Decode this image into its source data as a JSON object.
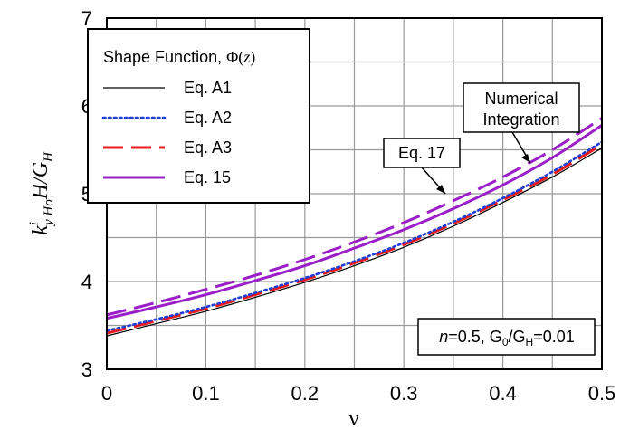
{
  "chart_data": {
    "type": "line",
    "xlabel": "ν",
    "ylabel": {
      "k": "k",
      "sup": "i",
      "sub": "y Ho",
      "rest": "H/G",
      "sub2": "H"
    },
    "xlim": [
      0,
      0.5
    ],
    "ylim": [
      3,
      7
    ],
    "x_ticks": [
      "0",
      "0.1",
      "0.2",
      "0.3",
      "0.4",
      "0.5"
    ],
    "y_ticks": [
      "3",
      "4",
      "5",
      "6",
      "7"
    ],
    "grid": true,
    "legend": {
      "title": "Shape Function, Φ(z)",
      "title_parts": {
        "text": "Shape Function, ",
        "phi": "Φ(",
        "z": "z",
        "close": ")"
      },
      "placement": "top-left"
    },
    "x": [
      0,
      0.05,
      0.1,
      0.15,
      0.2,
      0.25,
      0.3,
      0.35,
      0.4,
      0.45,
      0.5
    ],
    "series": [
      {
        "name": "Eq. A1",
        "color": "#000000",
        "style": "solid",
        "width": 1.2,
        "values": [
          3.38,
          3.52,
          3.66,
          3.82,
          3.99,
          4.18,
          4.39,
          4.63,
          4.9,
          5.19,
          5.52
        ]
      },
      {
        "name": "Eq. A2",
        "color": "#1f3fd6",
        "style": "dotted",
        "width": 2.6,
        "values": [
          3.44,
          3.57,
          3.71,
          3.87,
          4.04,
          4.23,
          4.44,
          4.68,
          4.95,
          5.25,
          5.59
        ]
      },
      {
        "name": "Eq. A3",
        "color": "#e8191a",
        "style": "dashed",
        "width": 3,
        "values": [
          3.41,
          3.55,
          3.69,
          3.85,
          4.02,
          4.21,
          4.42,
          4.66,
          4.93,
          5.22,
          5.56
        ]
      },
      {
        "name": "Eq. 15",
        "color": "#9b1fc8",
        "style": "solid",
        "width": 3,
        "values": [
          3.58,
          3.71,
          3.85,
          4.01,
          4.18,
          4.38,
          4.59,
          4.83,
          5.1,
          5.41,
          5.78
        ]
      },
      {
        "name": "",
        "color": "#9b1fc8",
        "style": "dashed",
        "width": 3,
        "values": [
          3.62,
          3.76,
          3.91,
          4.07,
          4.25,
          4.45,
          4.67,
          4.92,
          5.19,
          5.5,
          5.86
        ]
      }
    ],
    "annotations": [
      {
        "text": "Eq. 17"
      },
      {
        "lines": [
          "Numerical",
          "Integration"
        ]
      },
      {
        "parts": {
          "n": "n",
          "eq1": "=0.5, G",
          "sub0": "0",
          "slash": "/G",
          "subH": "H",
          "eq2": "=0.01"
        }
      }
    ]
  }
}
